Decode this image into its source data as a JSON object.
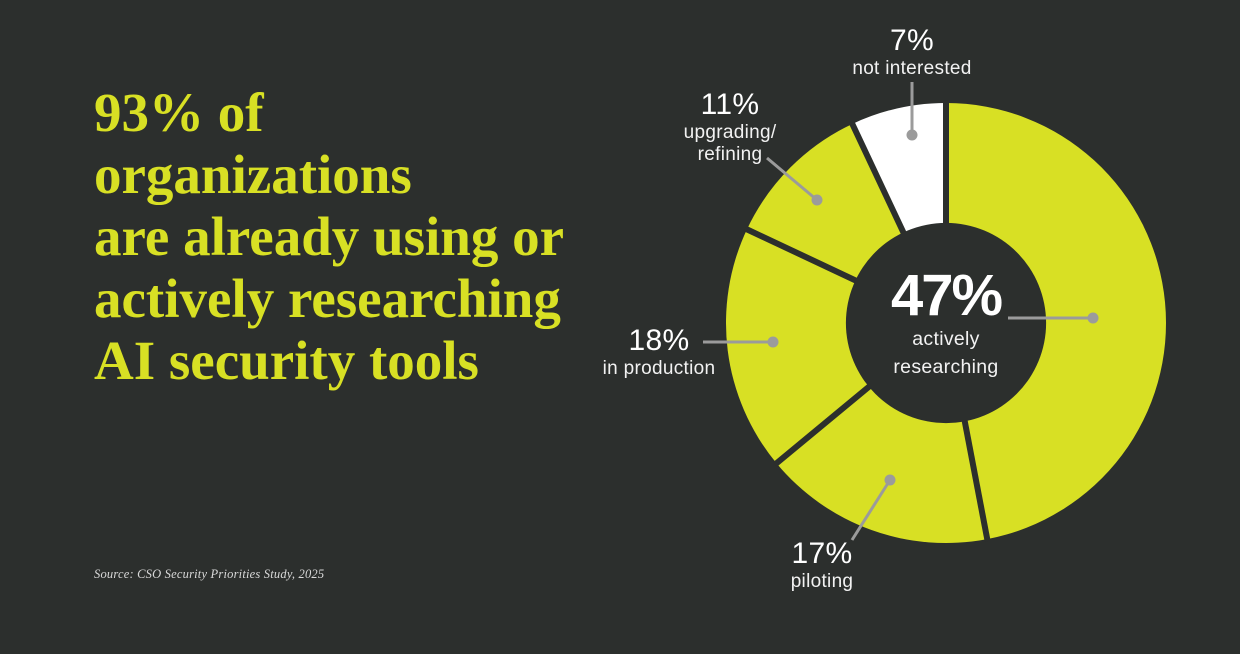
{
  "page": {
    "background": "#2c2f2d",
    "accent_yellow": "#d8e024",
    "callout_gray": "#9b9b9b",
    "text_white": "#ffffff"
  },
  "headline": {
    "lines": [
      "93% of organizations",
      "are already using or",
      "actively researching",
      "AI security tools"
    ],
    "color": "#d8e024"
  },
  "source_text": "Source: CSO Security Priorities Study, 2025",
  "chart_data": {
    "type": "pie",
    "subtype": "donut",
    "title": "93% of organizations are already using or actively researching AI security tools",
    "start_angle_deg": 0,
    "direction": "clockwise",
    "hole_ratio": 0.455,
    "separator_color": "#2c2f2d",
    "callout_color": "#9b9b9b",
    "legend_position": "none",
    "segments": [
      {
        "label": "actively researching",
        "pct_label": "47%",
        "value": 47,
        "color": "#d8e024"
      },
      {
        "label": "piloting",
        "pct_label": "17%",
        "value": 17,
        "color": "#d8e024"
      },
      {
        "label": "in production",
        "pct_label": "18%",
        "value": 18,
        "color": "#d8e024"
      },
      {
        "label": "upgrading/refining",
        "pct_label": "11%",
        "value": 11,
        "color": "#d8e024"
      },
      {
        "label": "not interested",
        "pct_label": "7%",
        "value": 7,
        "color": "#ffffff"
      }
    ]
  },
  "callouts": {
    "c47": {
      "pct": "47%",
      "lines": [
        "actively",
        "researching"
      ]
    },
    "c17": {
      "pct": "17%",
      "lines": [
        "piloting"
      ]
    },
    "c18": {
      "pct": "18%",
      "lines": [
        "in production"
      ]
    },
    "c11": {
      "pct": "11%",
      "lines": [
        "upgrading/",
        "refining"
      ]
    },
    "c7": {
      "pct": "7%",
      "lines": [
        "not interested"
      ]
    }
  }
}
